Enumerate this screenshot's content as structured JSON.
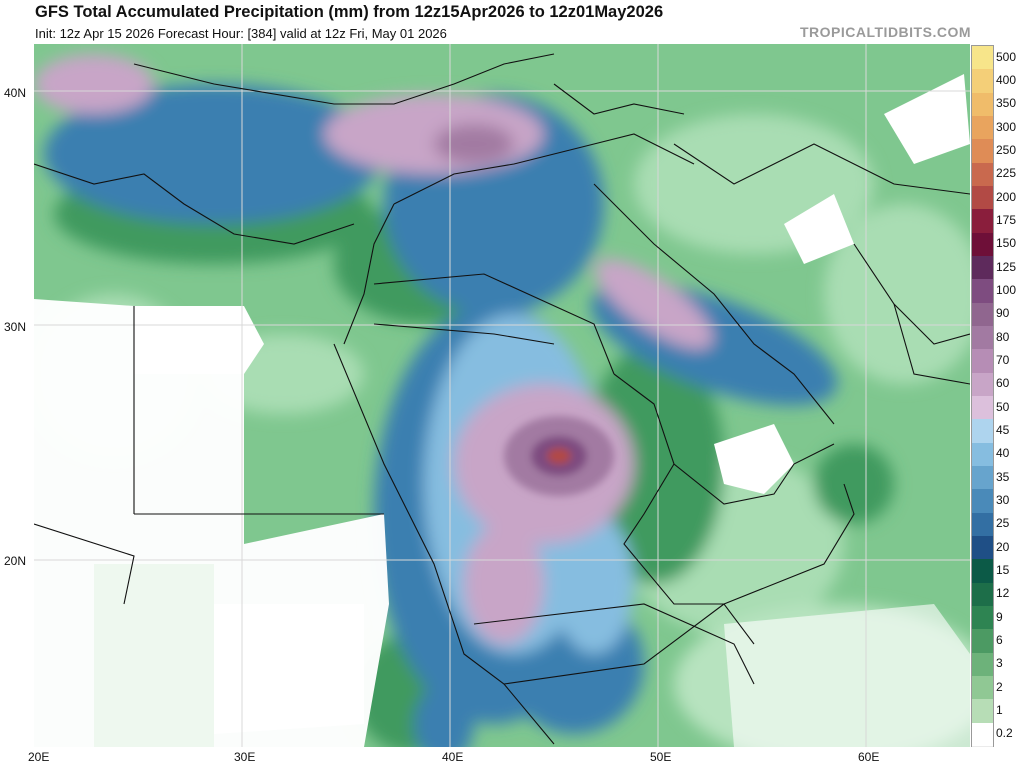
{
  "header": {
    "title": "GFS Total Accumulated Precipitation (mm) from 12z15Apr2026 to 12z01May2026",
    "subtitle": "Init: 12z Apr 15 2026   Forecast Hour: [384]   valid at 12z Fri, May 01 2026",
    "watermark": "TROPICALTIDBITS.COM"
  },
  "map": {
    "lat_labels": [
      "40N",
      "30N",
      "20N"
    ],
    "lon_labels": [
      "20E",
      "30E",
      "40E",
      "50E",
      "60E"
    ]
  },
  "legend": {
    "levels": [
      "500",
      "400",
      "350",
      "300",
      "250",
      "225",
      "200",
      "175",
      "150",
      "125",
      "100",
      "90",
      "80",
      "70",
      "60",
      "50",
      "45",
      "40",
      "35",
      "30",
      "25",
      "20",
      "15",
      "12",
      "9",
      "6",
      "3",
      "2",
      "1",
      "0.2"
    ],
    "colors": [
      "#f7e58a",
      "#f4cf78",
      "#f0bc6a",
      "#e9a45e",
      "#df8c56",
      "#c9694e",
      "#b24a45",
      "#8a1e3c",
      "#6e0f38",
      "#5e2a5c",
      "#7e4c80",
      "#90668f",
      "#a27aa2",
      "#b68db5",
      "#c8a5c7",
      "#dcc0dc",
      "#aed4ee",
      "#86bde0",
      "#67a4cd",
      "#4a8ab9",
      "#336fa3",
      "#1f4f86",
      "#0c5a47",
      "#1d6e49",
      "#2e8452",
      "#4c9a63",
      "#6db27a",
      "#90c894",
      "#b7ddb6",
      "#ffffff"
    ]
  }
}
